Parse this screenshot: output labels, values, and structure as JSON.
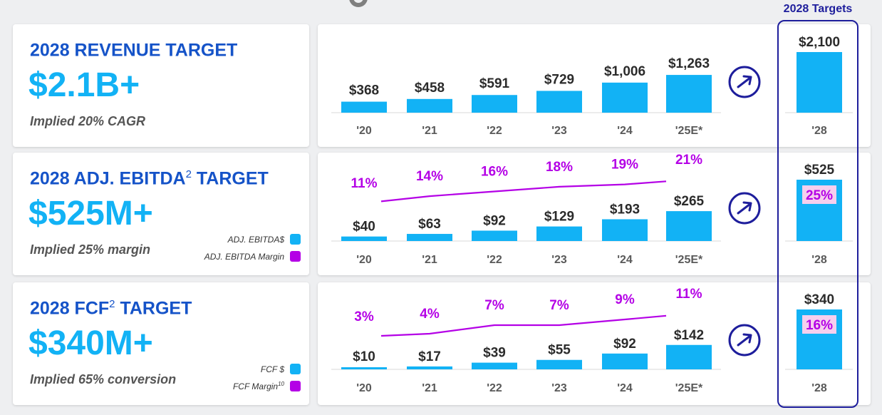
{
  "targets_label": "2028 Targets",
  "colors": {
    "bar": "#12b2f5",
    "margin": "#b400e6",
    "title": "#1553c8",
    "value": "#12b2f5",
    "frame": "#1e1e9c"
  },
  "rows": [
    {
      "title": "2028 REVENUE TARGET",
      "sup": "",
      "title_end": "",
      "value": "$2.1B+",
      "sub": "Implied 20% CAGR"
    },
    {
      "title": "2028 ADJ. EBITDA",
      "sup": "2",
      "title_end": " TARGET",
      "value": "$525M+",
      "sub": "Implied 25% margin",
      "legend": [
        {
          "label": "ADJ. EBITDA$",
          "sup": ""
        },
        {
          "label": "ADJ. EBITDA Margin",
          "sup": ""
        }
      ]
    },
    {
      "title": "2028 FCF",
      "sup": "2",
      "title_end": " TARGET",
      "value": "$340M+",
      "sub": "Implied 65% conversion",
      "legend": [
        {
          "label": "FCF $",
          "sup": ""
        },
        {
          "label": "FCF Margin",
          "sup": "10"
        }
      ]
    }
  ],
  "chart_data": [
    {
      "type": "bar",
      "categories": [
        "'20",
        "'21",
        "'22",
        "'23",
        "'24",
        "'25E*"
      ],
      "values": [
        368,
        458,
        591,
        729,
        1006,
        1263
      ],
      "value_labels": [
        "$368",
        "$458",
        "$591",
        "$729",
        "$1,006",
        "$1,263"
      ],
      "target": {
        "category": "'28",
        "value": 2100,
        "label": "$2,100"
      },
      "arrow_icon": "arrow-circle-icon"
    },
    {
      "type": "bar",
      "categories": [
        "'20",
        "'21",
        "'22",
        "'23",
        "'24",
        "'25E*"
      ],
      "values": [
        40,
        63,
        92,
        129,
        193,
        265
      ],
      "value_labels": [
        "$40",
        "$63",
        "$92",
        "$129",
        "$193",
        "$265"
      ],
      "margins": [
        11,
        14,
        16,
        18,
        19,
        21
      ],
      "margin_labels": [
        "11%",
        "14%",
        "16%",
        "18%",
        "19%",
        "21%"
      ],
      "target": {
        "category": "'28",
        "value": 525,
        "label": "$525",
        "margin_label": "25%"
      },
      "arrow_icon": "arrow-circle-icon"
    },
    {
      "type": "bar",
      "categories": [
        "'20",
        "'21",
        "'22",
        "'23",
        "'24",
        "'25E*"
      ],
      "values": [
        10,
        17,
        39,
        55,
        92,
        142
      ],
      "value_labels": [
        "$10",
        "$17",
        "$39",
        "$55",
        "$92",
        "$142"
      ],
      "margins": [
        3,
        4,
        7,
        7,
        9,
        11
      ],
      "margin_labels": [
        "3%",
        "4%",
        "7%",
        "7%",
        "9%",
        "11%"
      ],
      "target": {
        "category": "'28",
        "value": 340,
        "label": "$340",
        "margin_label": "16%"
      },
      "arrow_icon": "arrow-circle-icon"
    }
  ]
}
